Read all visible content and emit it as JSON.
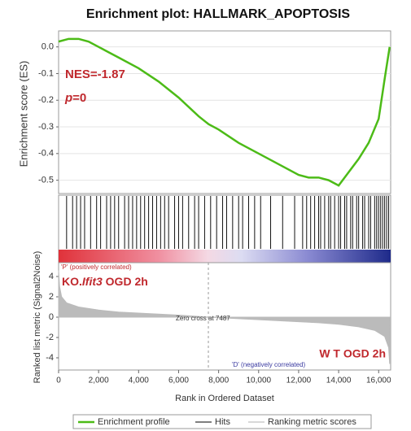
{
  "chart_data": [
    {
      "type": "line",
      "title": "Enrichment plot: HALLMARK_APOPTOSIS",
      "y_label": "Enrichment score (ES)",
      "x": [
        0,
        500,
        1000,
        1500,
        2000,
        2500,
        3000,
        4000,
        5000,
        6000,
        7000,
        7500,
        8000,
        9000,
        10000,
        11000,
        12000,
        12500,
        13000,
        13500,
        14000,
        14500,
        15000,
        15500,
        16000,
        16300,
        16550
      ],
      "series": [
        {
          "name": "Enrichment profile",
          "color": "#4cbb17",
          "values": [
            0.02,
            0.03,
            0.03,
            0.02,
            0.0,
            -0.02,
            -0.04,
            -0.08,
            -0.13,
            -0.19,
            -0.26,
            -0.29,
            -0.31,
            -0.36,
            -0.4,
            -0.44,
            -0.48,
            -0.49,
            -0.49,
            -0.5,
            -0.52,
            -0.47,
            -0.42,
            -0.36,
            -0.27,
            -0.12,
            0.0
          ]
        }
      ],
      "xlim": [
        0,
        16600
      ],
      "ylim": [
        -0.55,
        0.06
      ],
      "yticks": [
        {
          "value": 0,
          "label": "0.0"
        },
        -0.1,
        -0.2,
        -0.3,
        -0.4,
        -0.5
      ],
      "grid": true,
      "annotations": {
        "nes": "NES=-1.87",
        "p_symbol": "p",
        "p_value": "=0"
      }
    },
    {
      "type": "hits",
      "name": "Hits",
      "color": "#111111",
      "x": [
        400,
        700,
        900,
        1100,
        1300,
        1600,
        1900,
        2100,
        2400,
        2600,
        2800,
        3000,
        3300,
        3500,
        3700,
        3900,
        4100,
        4300,
        4500,
        4700,
        4900,
        5100,
        5300,
        5500,
        5800,
        6000,
        6200,
        6500,
        6800,
        7000,
        7300,
        7600,
        7900,
        8200,
        8400,
        8700,
        9000,
        9200,
        9500,
        9800,
        10100,
        10600,
        11200,
        11800,
        12200,
        12400,
        12600,
        12800,
        13000,
        13100,
        13300,
        13500,
        13600,
        13800,
        14000,
        14100,
        14300,
        14400,
        14600,
        14700,
        14900,
        15000,
        15200,
        15300,
        15500,
        15600,
        15800,
        15900,
        16000,
        16100,
        16200,
        16300,
        16400,
        16500
      ],
      "xlim": [
        0,
        16600
      ]
    },
    {
      "type": "area",
      "name": "Ranking metric scores",
      "color": "#bbbbbb",
      "x_label": "Rank in Ordered Dataset",
      "y_label": "Ranked list metric (Signal2Noise)",
      "x": [
        0,
        50,
        150,
        400,
        1000,
        2000,
        3000,
        4000,
        5000,
        6000,
        7000,
        7487,
        8000,
        9000,
        10000,
        11000,
        12000,
        13000,
        14000,
        15000,
        15800,
        16300,
        16500,
        16550
      ],
      "values": [
        4.6,
        3,
        2,
        1.4,
        1.0,
        0.7,
        0.5,
        0.4,
        0.3,
        0.2,
        0.07,
        0,
        -0.05,
        -0.15,
        -0.25,
        -0.35,
        -0.45,
        -0.55,
        -0.7,
        -0.95,
        -1.3,
        -1.9,
        -3,
        -4.6
      ],
      "xlim": [
        0,
        16600
      ],
      "ylim": [
        -5.2,
        5.36
      ],
      "xticks": [
        0,
        {
          "value": 2000,
          "label": "2,000"
        },
        {
          "value": 4000,
          "label": "4,000"
        },
        {
          "value": 6000,
          "label": "6,000"
        },
        {
          "value": 8000,
          "label": "8,000"
        },
        {
          "value": 10000,
          "label": "10,000"
        },
        {
          "value": 12000,
          "label": "12,000"
        },
        {
          "value": 14000,
          "label": "14,000"
        },
        {
          "value": 16000,
          "label": "16,000"
        }
      ],
      "yticks": [
        4,
        2,
        0,
        -2,
        -4
      ],
      "zero_cross": 7487,
      "zero_cross_label": "Zero cross at 7487",
      "positive_label": "'P' (positively correlated)",
      "negative_label": "'D' (negatively correlated)",
      "positive_group": {
        "prefix": "KO.",
        "gene": "Ifit3",
        "suffix": " OGD 2h"
      },
      "negative_group": "W T OGD 2h"
    }
  ]
}
